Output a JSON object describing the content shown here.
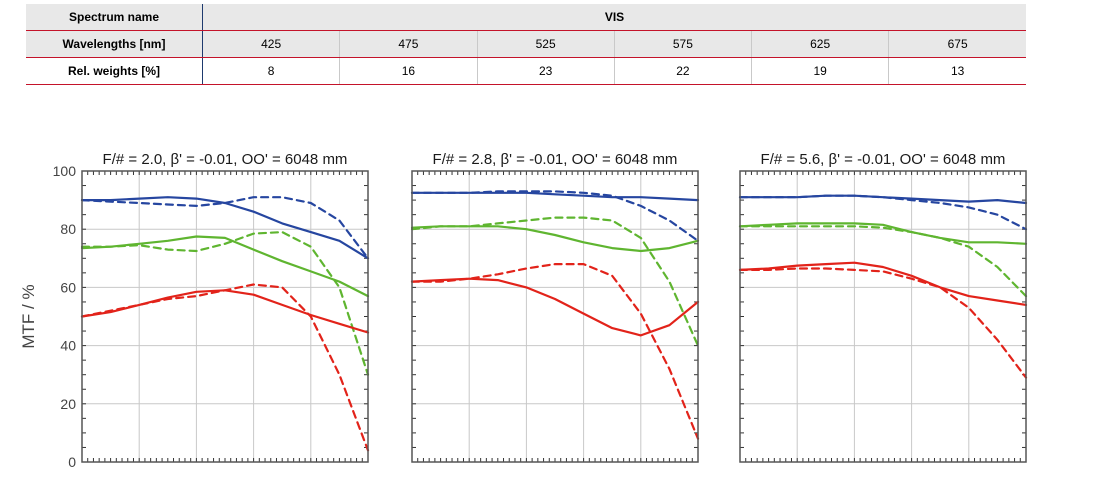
{
  "table": {
    "col_header_label": "Spectrum name",
    "spectrum_name": "VIS",
    "wavelengths_label": "Wavelengths [nm]",
    "weights_label": "Rel. weights [%]",
    "wavelengths": [
      "425",
      "475",
      "525",
      "575",
      "625",
      "675"
    ],
    "weights": [
      "8",
      "16",
      "23",
      "22",
      "19",
      "13"
    ]
  },
  "colors": {
    "blue": "#2646a0",
    "green": "#5fb530",
    "red": "#e2231a",
    "grid": "#c8c8c8",
    "frame": "#555555"
  },
  "chart_data": [
    {
      "type": "line",
      "title": "F/# = 2.0, β' = -0.01, OO' = 6048 mm",
      "ylabel": "MTF / %",
      "xlabel": "",
      "ylim": [
        0,
        100
      ],
      "xlim": [
        0,
        100
      ],
      "yticks": [
        "0",
        "20",
        "40",
        "60",
        "80",
        "100"
      ],
      "grid": true,
      "series": [
        {
          "color": "blue",
          "dash": false,
          "x": [
            0,
            10,
            20,
            30,
            40,
            50,
            60,
            70,
            80,
            90,
            100
          ],
          "y": [
            90,
            90,
            90.5,
            91,
            90.5,
            89,
            86,
            82,
            79,
            76,
            70
          ]
        },
        {
          "color": "blue",
          "dash": true,
          "x": [
            0,
            10,
            20,
            30,
            40,
            50,
            60,
            70,
            80,
            90,
            100
          ],
          "y": [
            90,
            89.5,
            89,
            88.5,
            88,
            89,
            91,
            91,
            89,
            83,
            70
          ]
        },
        {
          "color": "green",
          "dash": false,
          "x": [
            0,
            10,
            20,
            30,
            40,
            50,
            60,
            70,
            80,
            90,
            100
          ],
          "y": [
            73.5,
            74,
            75,
            76,
            77.5,
            77,
            73,
            69,
            65.5,
            62,
            57
          ]
        },
        {
          "color": "green",
          "dash": true,
          "x": [
            0,
            10,
            20,
            30,
            40,
            50,
            60,
            70,
            80,
            90,
            100
          ],
          "y": [
            74,
            74,
            74.5,
            73,
            72.5,
            75,
            78.5,
            79,
            74,
            60,
            30
          ]
        },
        {
          "color": "red",
          "dash": false,
          "x": [
            0,
            10,
            20,
            30,
            40,
            50,
            60,
            70,
            80,
            90,
            100
          ],
          "y": [
            50,
            51.5,
            54,
            56.5,
            58.5,
            59,
            57.5,
            54,
            50.5,
            47.5,
            44.5
          ]
        },
        {
          "color": "red",
          "dash": true,
          "x": [
            0,
            10,
            20,
            30,
            40,
            50,
            60,
            70,
            80,
            90,
            100
          ],
          "y": [
            50,
            52,
            54,
            56,
            57,
            59,
            61,
            60,
            50,
            30,
            4
          ]
        }
      ]
    },
    {
      "type": "line",
      "title": "F/# = 2.8, β' = -0.01, OO' = 6048 mm",
      "ylabel": "",
      "xlabel": "",
      "ylim": [
        0,
        100
      ],
      "xlim": [
        0,
        100
      ],
      "yticks": [],
      "grid": true,
      "series": [
        {
          "color": "blue",
          "dash": false,
          "x": [
            0,
            10,
            20,
            30,
            40,
            50,
            60,
            70,
            80,
            90,
            100
          ],
          "y": [
            92.5,
            92.5,
            92.5,
            92.5,
            92.5,
            92,
            91.5,
            91,
            91,
            90.5,
            90
          ]
        },
        {
          "color": "blue",
          "dash": true,
          "x": [
            0,
            10,
            20,
            30,
            40,
            50,
            60,
            70,
            80,
            90,
            100
          ],
          "y": [
            92.5,
            92.5,
            92.5,
            93,
            93,
            93,
            92.5,
            91.5,
            88,
            83,
            76
          ]
        },
        {
          "color": "green",
          "dash": false,
          "x": [
            0,
            10,
            20,
            30,
            40,
            50,
            60,
            70,
            80,
            90,
            100
          ],
          "y": [
            80.5,
            81,
            81,
            81,
            80,
            78,
            75.5,
            73.5,
            72.5,
            73.5,
            76
          ]
        },
        {
          "color": "green",
          "dash": true,
          "x": [
            0,
            10,
            20,
            30,
            40,
            50,
            60,
            70,
            80,
            90,
            100
          ],
          "y": [
            80,
            81,
            81,
            82,
            83,
            84,
            84,
            83,
            77,
            62,
            40
          ]
        },
        {
          "color": "red",
          "dash": false,
          "x": [
            0,
            10,
            20,
            30,
            40,
            50,
            60,
            70,
            80,
            90,
            100
          ],
          "y": [
            62,
            62.5,
            63,
            62.5,
            60,
            56,
            51,
            46,
            43.5,
            47,
            55
          ]
        },
        {
          "color": "red",
          "dash": true,
          "x": [
            0,
            10,
            20,
            30,
            40,
            50,
            60,
            70,
            80,
            90,
            100
          ],
          "y": [
            62,
            62,
            63,
            64.5,
            66.5,
            68,
            68,
            64,
            51,
            32,
            8
          ]
        }
      ]
    },
    {
      "type": "line",
      "title": "F/# = 5.6, β' = -0.01, OO' = 6048 mm",
      "ylabel": "",
      "xlabel": "",
      "ylim": [
        0,
        100
      ],
      "xlim": [
        0,
        100
      ],
      "yticks": [],
      "grid": true,
      "series": [
        {
          "color": "blue",
          "dash": false,
          "x": [
            0,
            10,
            20,
            30,
            40,
            50,
            60,
            70,
            80,
            90,
            100
          ],
          "y": [
            91,
            91,
            91,
            91.5,
            91.5,
            91,
            90.5,
            90,
            89.5,
            90,
            89
          ]
        },
        {
          "color": "blue",
          "dash": true,
          "x": [
            0,
            10,
            20,
            30,
            40,
            50,
            60,
            70,
            80,
            90,
            100
          ],
          "y": [
            91,
            91,
            91,
            91.5,
            91.5,
            91,
            90,
            89,
            87.5,
            85,
            80
          ]
        },
        {
          "color": "green",
          "dash": false,
          "x": [
            0,
            10,
            20,
            30,
            40,
            50,
            60,
            70,
            80,
            90,
            100
          ],
          "y": [
            81,
            81.5,
            82,
            82,
            82,
            81.5,
            79,
            77,
            75.5,
            75.5,
            75
          ]
        },
        {
          "color": "green",
          "dash": true,
          "x": [
            0,
            10,
            20,
            30,
            40,
            50,
            60,
            70,
            80,
            90,
            100
          ],
          "y": [
            81,
            81,
            81,
            81,
            81,
            80.5,
            79,
            77,
            74,
            67,
            57
          ]
        },
        {
          "color": "red",
          "dash": false,
          "x": [
            0,
            10,
            20,
            30,
            40,
            50,
            60,
            70,
            80,
            90,
            100
          ],
          "y": [
            66,
            66.5,
            67.5,
            68,
            68.5,
            67,
            64,
            60,
            57,
            55.5,
            54
          ]
        },
        {
          "color": "red",
          "dash": true,
          "x": [
            0,
            10,
            20,
            30,
            40,
            50,
            60,
            70,
            80,
            90,
            100
          ],
          "y": [
            66,
            66,
            66.5,
            66.5,
            66,
            65.5,
            63,
            60,
            53,
            42,
            29
          ]
        }
      ]
    }
  ]
}
